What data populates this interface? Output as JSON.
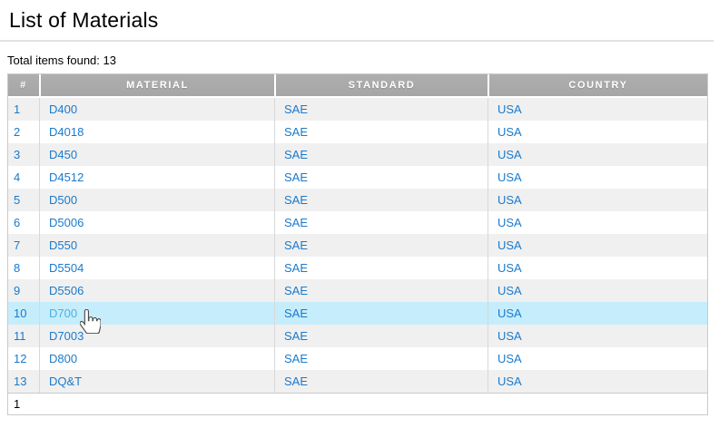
{
  "page": {
    "title": "List of Materials",
    "total_items_label": "Total items found: 13",
    "pagination_current": "1"
  },
  "table": {
    "columns": [
      {
        "key": "num",
        "label": "#"
      },
      {
        "key": "material",
        "label": "MATERIAL"
      },
      {
        "key": "standard",
        "label": "STANDARD"
      },
      {
        "key": "country",
        "label": "COUNTRY"
      }
    ],
    "highlighted_row_number": 10,
    "rows": [
      {
        "num": "1",
        "material": "D400",
        "standard": "SAE",
        "country": "USA"
      },
      {
        "num": "2",
        "material": "D4018",
        "standard": "SAE",
        "country": "USA"
      },
      {
        "num": "3",
        "material": "D450",
        "standard": "SAE",
        "country": "USA"
      },
      {
        "num": "4",
        "material": "D4512",
        "standard": "SAE",
        "country": "USA"
      },
      {
        "num": "5",
        "material": "D500",
        "standard": "SAE",
        "country": "USA"
      },
      {
        "num": "6",
        "material": "D5006",
        "standard": "SAE",
        "country": "USA"
      },
      {
        "num": "7",
        "material": "D550",
        "standard": "SAE",
        "country": "USA"
      },
      {
        "num": "8",
        "material": "D5504",
        "standard": "SAE",
        "country": "USA"
      },
      {
        "num": "9",
        "material": "D5506",
        "standard": "SAE",
        "country": "USA"
      },
      {
        "num": "10",
        "material": "D700",
        "standard": "SAE",
        "country": "USA"
      },
      {
        "num": "11",
        "material": "D7003",
        "standard": "SAE",
        "country": "USA"
      },
      {
        "num": "12",
        "material": "D800",
        "standard": "SAE",
        "country": "USA"
      },
      {
        "num": "13",
        "material": "DQ&T",
        "standard": "SAE",
        "country": "USA"
      }
    ]
  },
  "cursor": {
    "type": "hand-pointer"
  },
  "colors": {
    "header_bg": "#a6a6a6",
    "header_text": "#ffffff",
    "row_odd_bg": "#f0f0f0",
    "row_even_bg": "#ffffff",
    "row_highlight_bg": "#c6edfb",
    "link": "#1a7acc",
    "link_hover": "#49b2e8",
    "table_border": "#c9c9c9",
    "cell_divider": "#d8d8d8",
    "rule": "#e2e2e2"
  }
}
